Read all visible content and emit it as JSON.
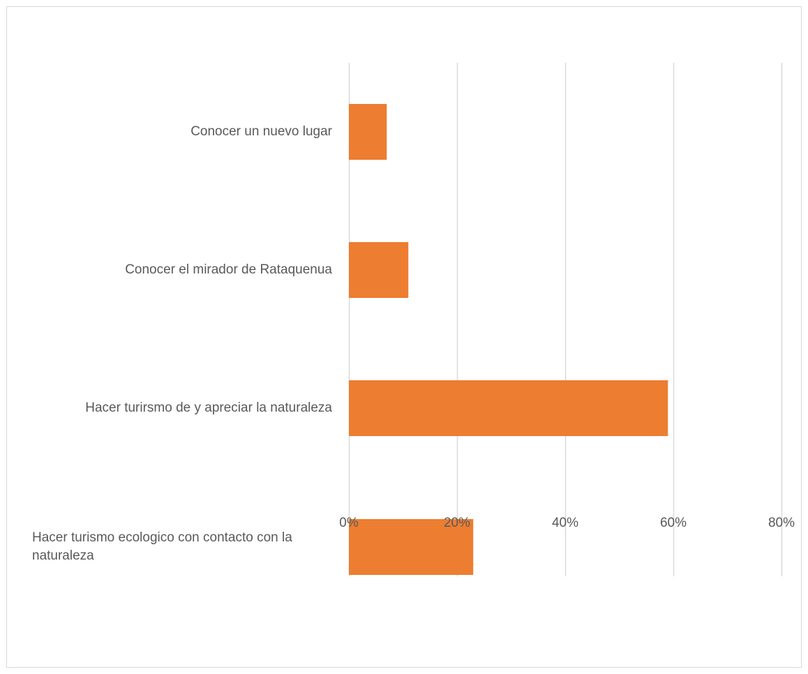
{
  "chart_data": {
    "type": "bar",
    "orientation": "horizontal",
    "title": "",
    "xlabel": "",
    "ylabel": "",
    "categories": [
      "Conocer un nuevo lugar",
      "Conocer el mirador de Rataquenua",
      "Hacer turirsmo de y apreciar la naturaleza",
      "Hacer turismo ecologico con contacto con la naturaleza"
    ],
    "category_lines": [
      [
        "Conocer un nuevo lugar"
      ],
      [
        "Conocer el mirador de Rataquenua"
      ],
      [
        "Hacer turirsmo de y apreciar la naturaleza"
      ],
      [
        "Hacer turismo ecologico con contacto con la",
        "naturaleza"
      ]
    ],
    "values": [
      0.07,
      0.11,
      0.59,
      0.23
    ],
    "xlim": [
      0,
      0.8
    ],
    "x_ticks": [
      0,
      0.2,
      0.4,
      0.6,
      0.8
    ],
    "x_tick_labels": [
      "0%",
      "20%",
      "40%",
      "60%",
      "80%"
    ],
    "grid": true,
    "legend": "none",
    "bar_color": "#ED7D31",
    "grid_color": "#D9D9D9",
    "text_color": "#595959",
    "frame_color": "#D9D9D9"
  }
}
